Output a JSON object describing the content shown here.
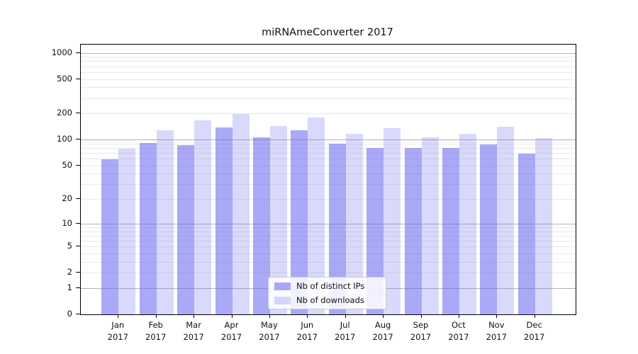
{
  "title": "miRNAmeConverter 2017",
  "chart_data": {
    "type": "bar",
    "title": "miRNAmeConverter 2017",
    "scale": "log1p",
    "categories": [
      "Jan 2017",
      "Feb 2017",
      "Mar 2017",
      "Apr 2017",
      "May 2017",
      "Jun 2017",
      "Jul 2017",
      "Aug 2017",
      "Sep 2017",
      "Oct 2017",
      "Nov 2017",
      "Dec 2017"
    ],
    "series": [
      {
        "name": "Nb of distinct IPs",
        "color": "rgba(102,102,240,0.56)",
        "values": [
          59,
          92,
          86,
          138,
          106,
          129,
          89,
          80,
          80,
          80,
          88,
          69
        ]
      },
      {
        "name": "Nb of downloads",
        "color": "rgba(102,102,240,0.25)",
        "values": [
          79,
          129,
          168,
          198,
          143,
          180,
          116,
          136,
          107,
          116,
          141,
          104
        ]
      }
    ],
    "xlabel": "",
    "ylabel": "",
    "y_ticks": [
      0,
      1,
      2,
      5,
      10,
      20,
      50,
      100,
      200,
      500,
      1000
    ],
    "y_minor_gridlines": [
      2,
      3,
      4,
      5,
      6,
      7,
      8,
      9,
      20,
      30,
      40,
      50,
      60,
      70,
      80,
      90,
      200,
      300,
      400,
      500,
      600,
      700,
      800,
      900
    ],
    "y_major_gridlines": [
      1,
      10,
      100,
      1000
    ],
    "ylim": [
      0,
      1240
    ],
    "grid": true,
    "legend": {
      "position": "lower center"
    }
  },
  "colors": {
    "axis": "#000000",
    "major_grid": "#b3b3b3",
    "minor_grid": "#e9e9e9",
    "legend_border": "#cccccc"
  }
}
